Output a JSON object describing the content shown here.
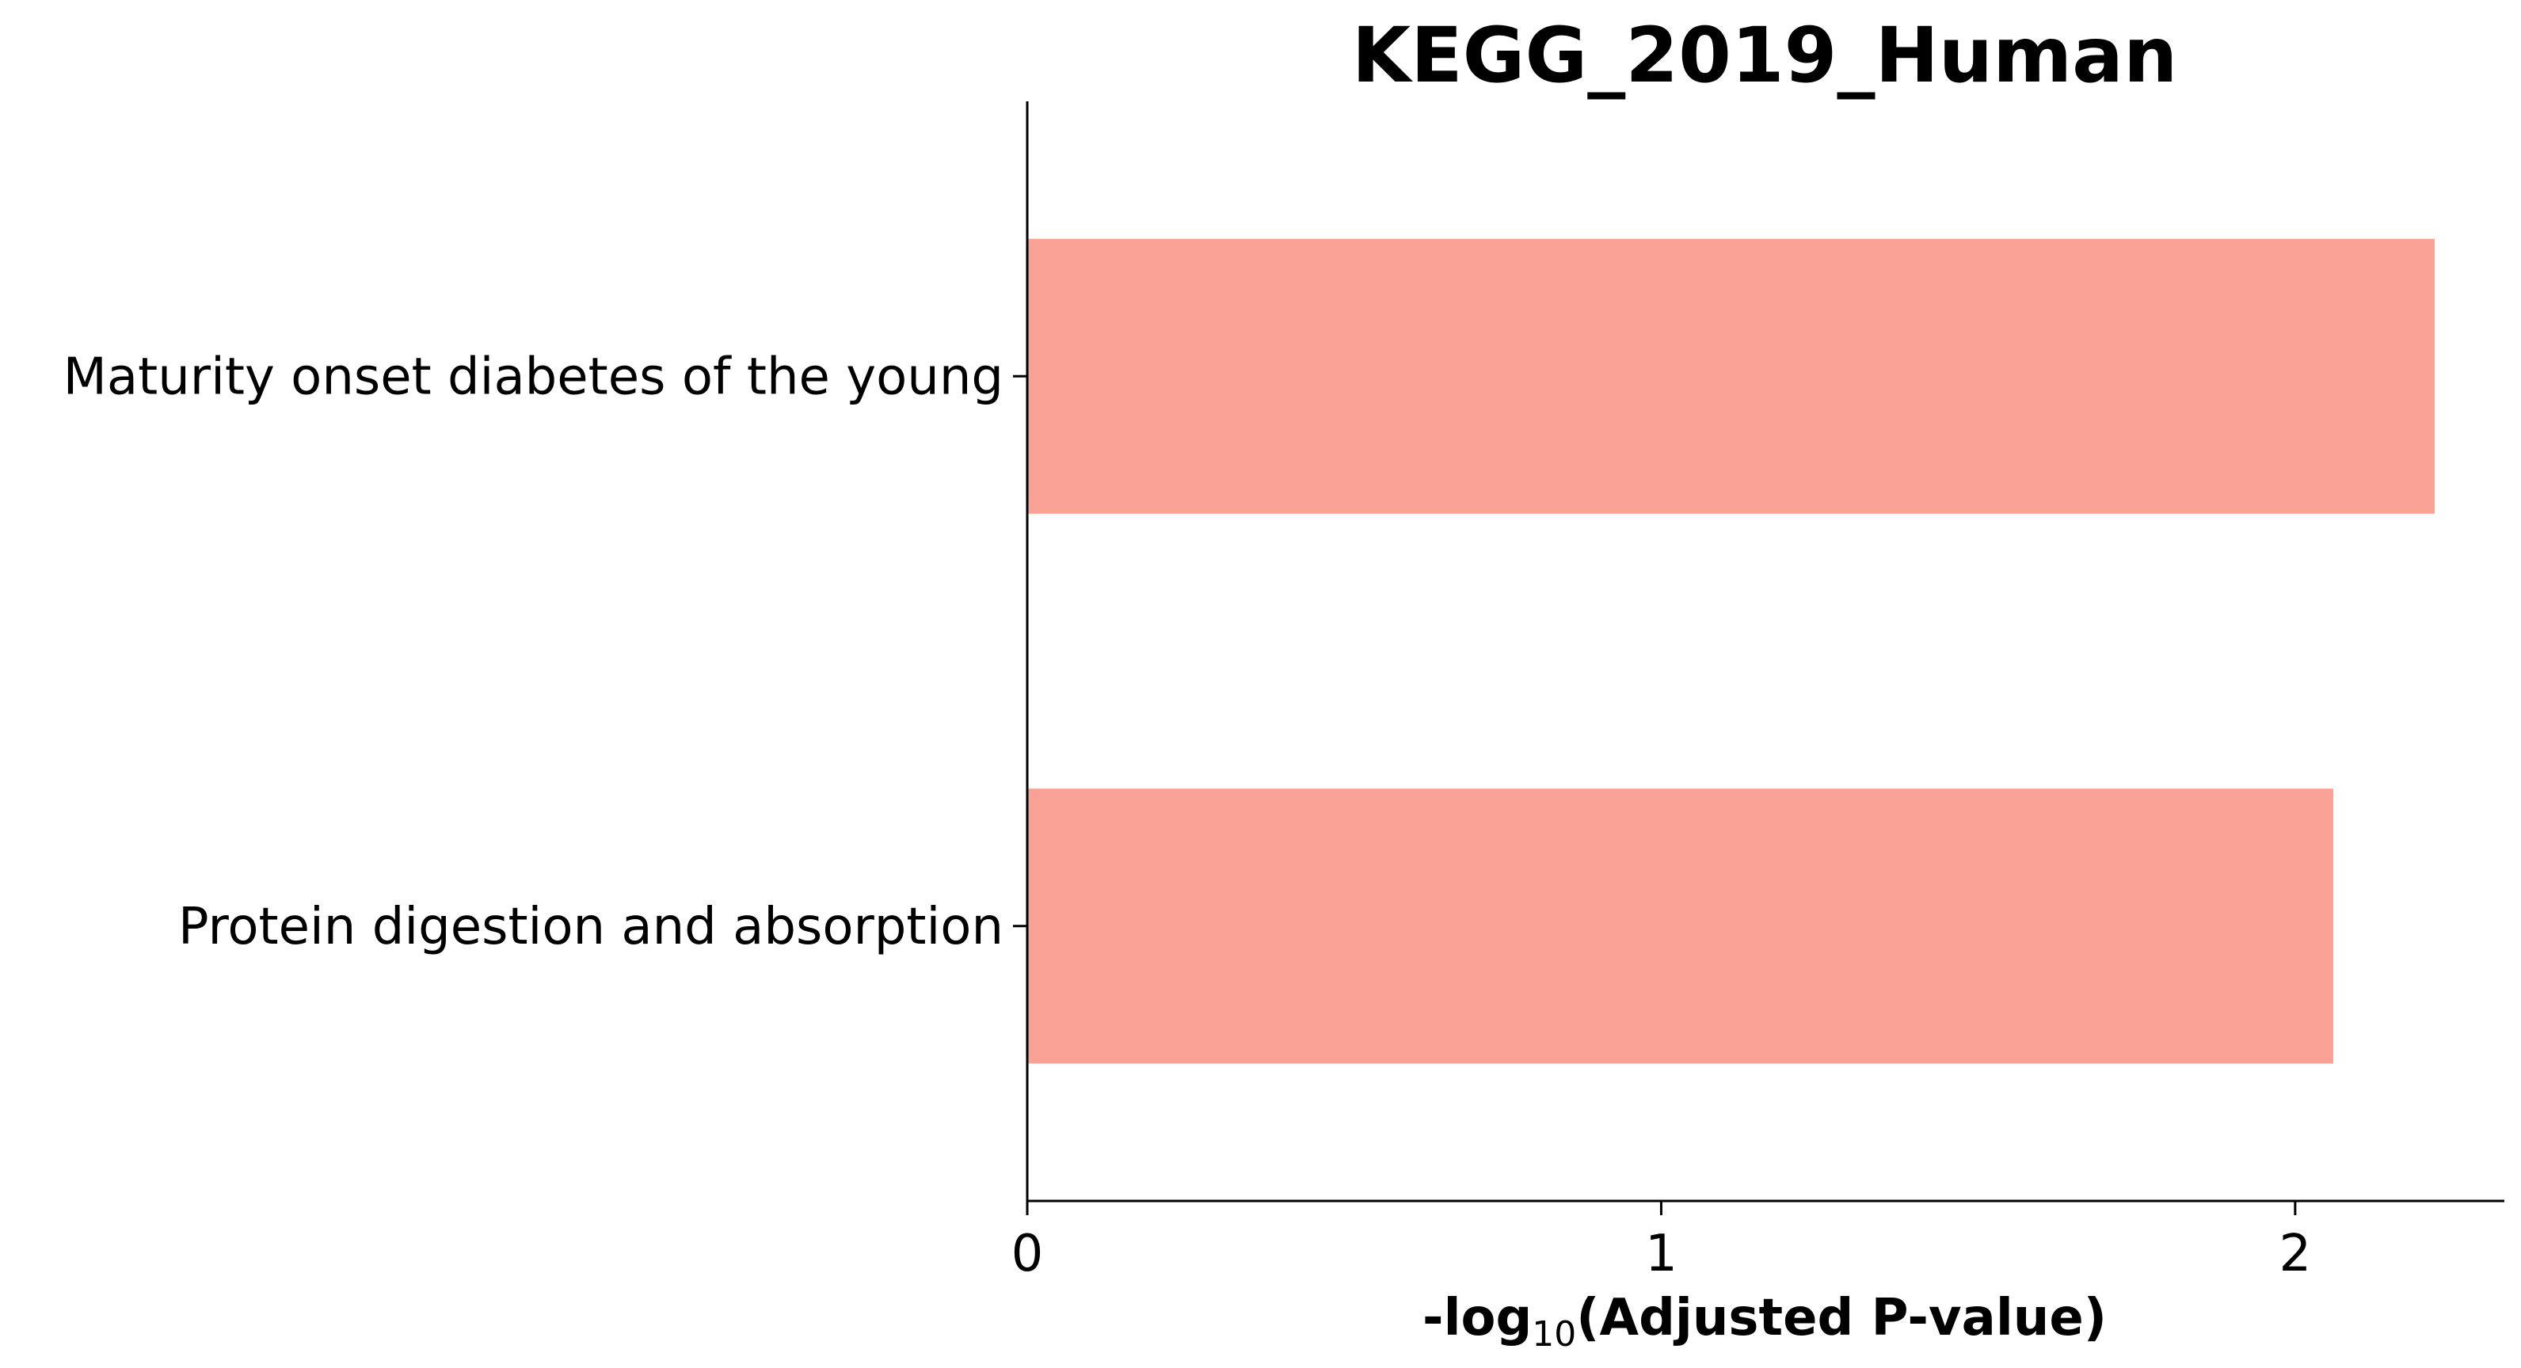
{
  "chart_data": {
    "type": "bar",
    "orientation": "horizontal",
    "title": "KEGG_2019_Human",
    "xlabel_parts": {
      "prefix": "-log",
      "subscript": "10",
      "suffix": "(Adjusted P-value)"
    },
    "ylabel": "",
    "categories": [
      "Maturity onset diabetes of the young",
      "Protein digestion and absorption"
    ],
    "values": [
      2.22,
      2.06
    ],
    "xlim": [
      0,
      2.33
    ],
    "xticks": [
      0,
      1,
      2
    ],
    "xtick_labels": [
      "0",
      "1",
      "2"
    ],
    "bar_color": "#FAA196",
    "grid": false,
    "legend": "none"
  }
}
